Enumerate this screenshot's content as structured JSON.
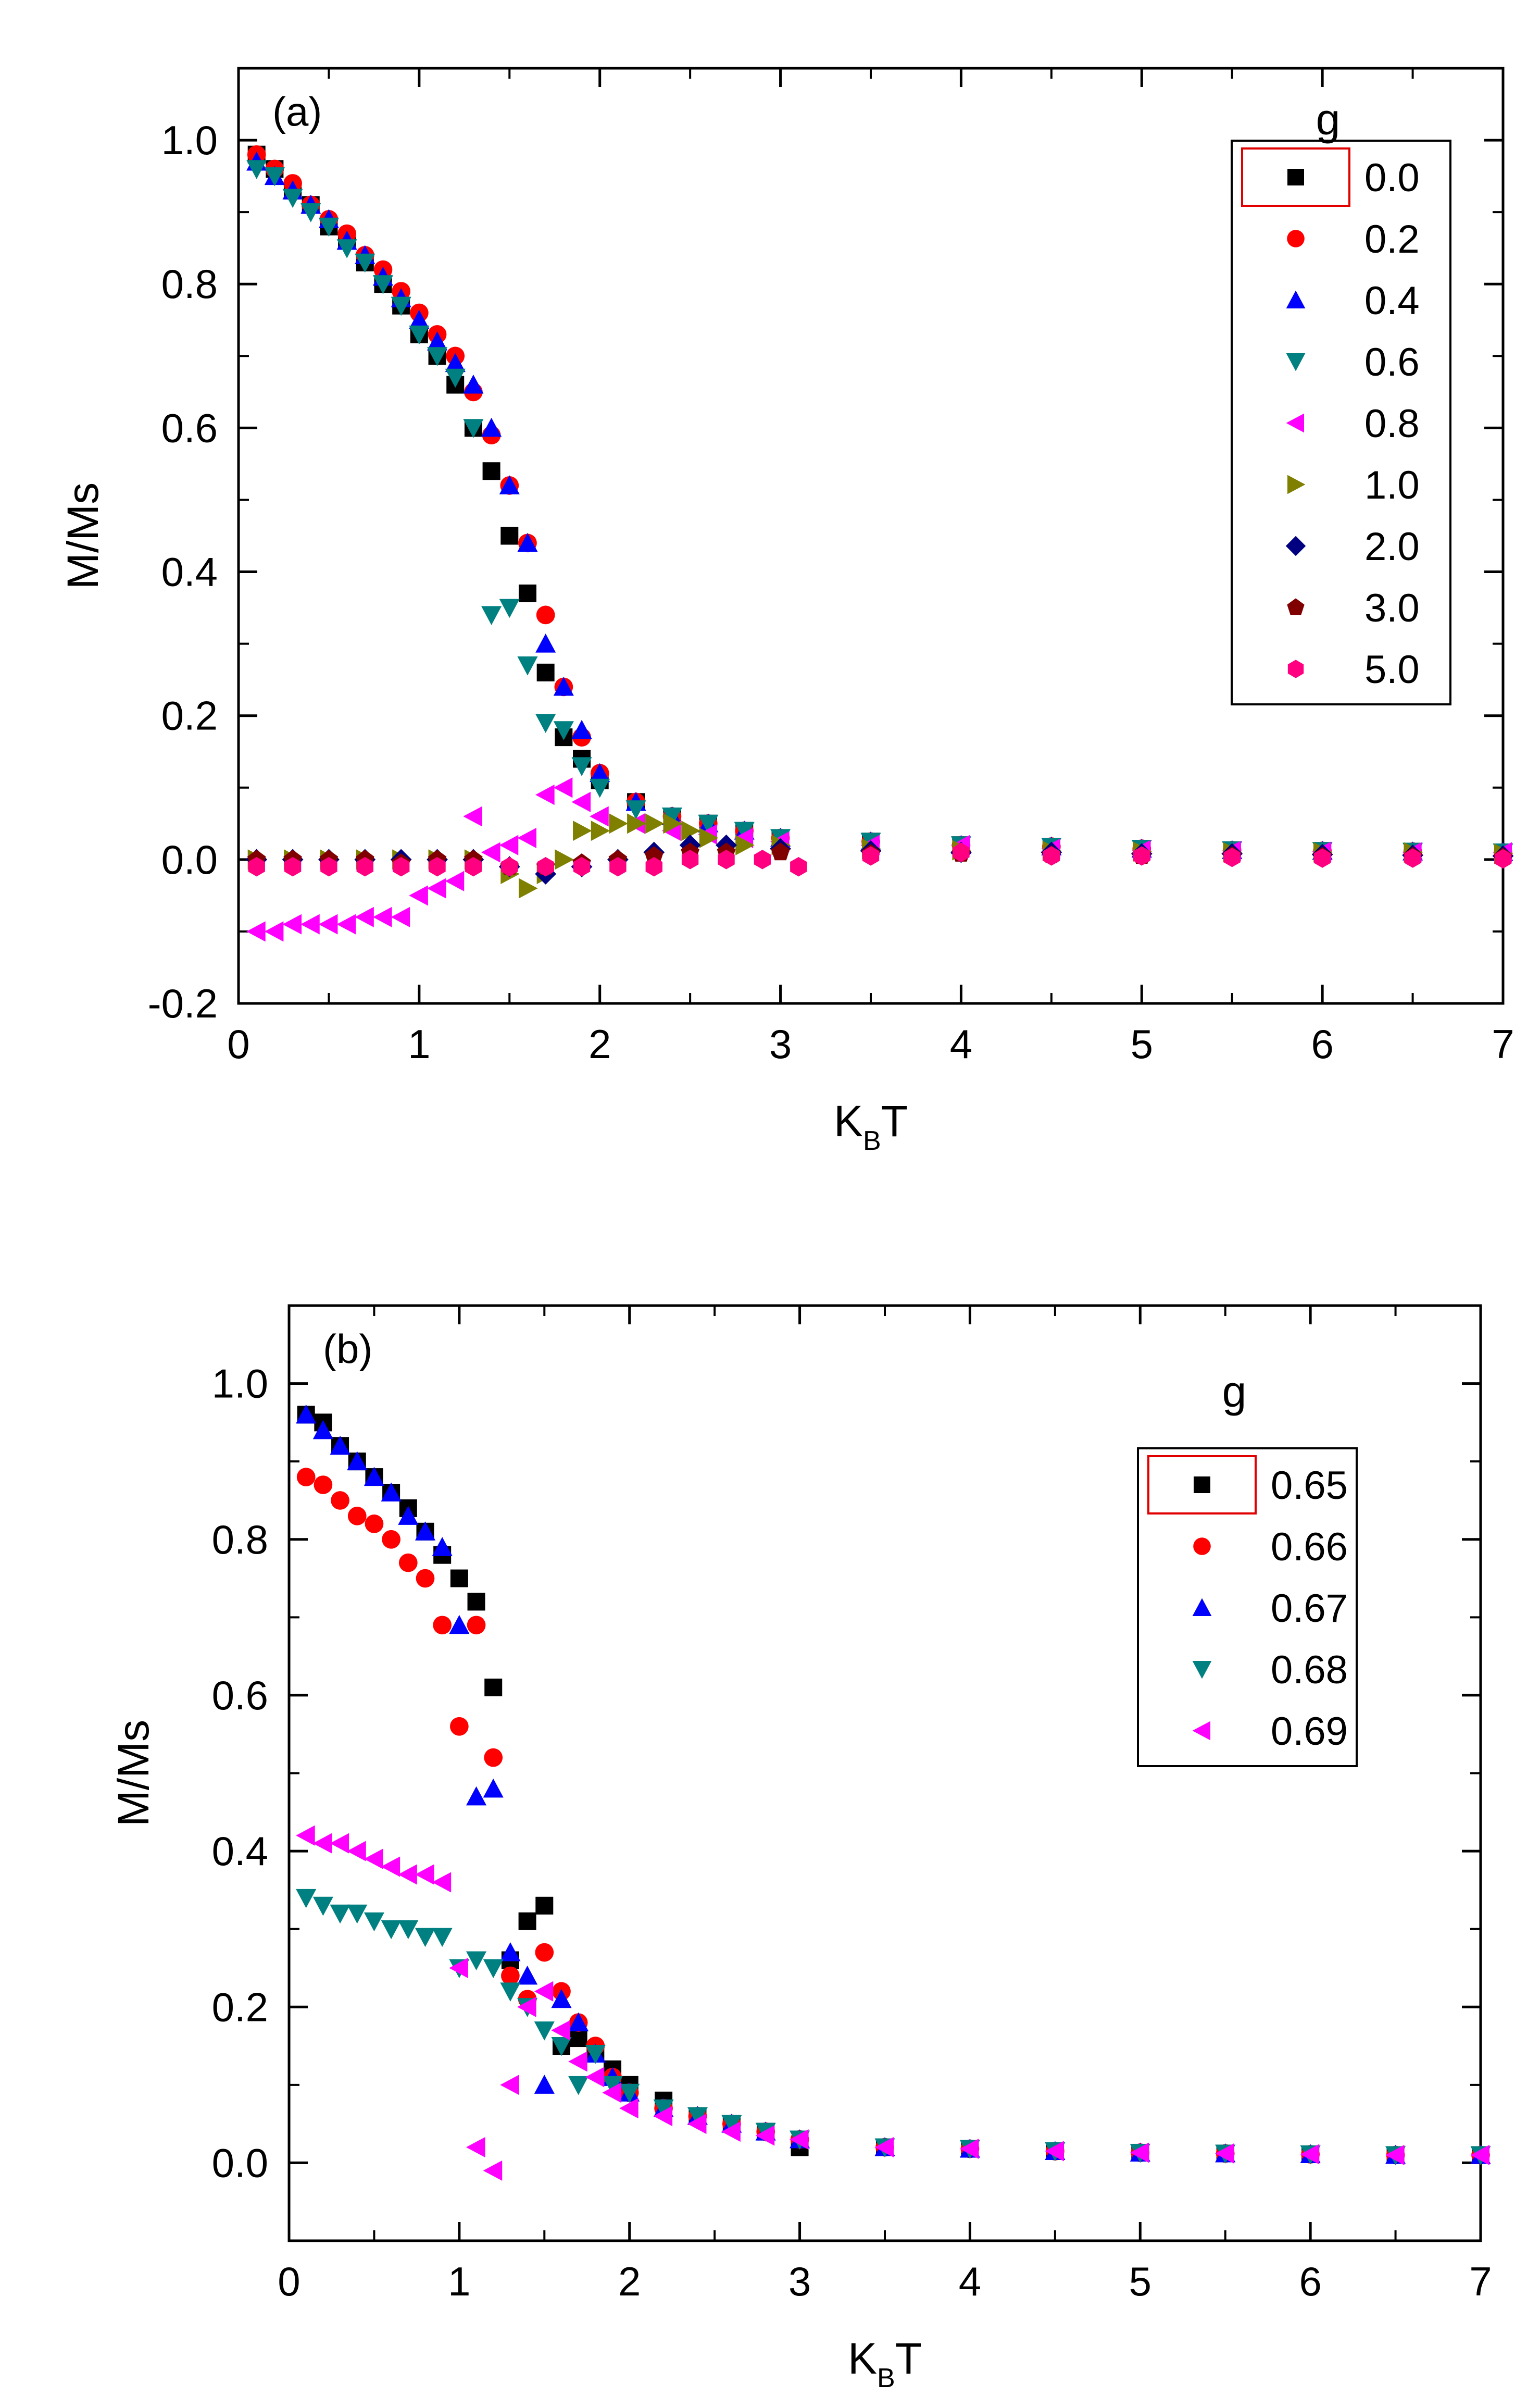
{
  "chart_data": [
    {
      "id": "a",
      "type": "scatter",
      "panel_label": "(a)",
      "xlabel": "K",
      "xlabel_sub": "B",
      "xlabel_tail": "T",
      "ylabel": "M/Ms",
      "xlim": [
        0,
        7
      ],
      "ylim": [
        -0.2,
        1.1
      ],
      "xticks": [
        0,
        1,
        2,
        3,
        4,
        5,
        6,
        7
      ],
      "yticks": [
        -0.2,
        0.0,
        0.2,
        0.4,
        0.6,
        0.8,
        1.0
      ],
      "xtick_labels": [
        "0",
        "1",
        "2",
        "3",
        "4",
        "5",
        "6",
        "7"
      ],
      "ytick_labels": [
        "-0.2",
        "0.0",
        "0.2",
        "0.4",
        "0.6",
        "0.8",
        "1.0"
      ],
      "legend_title": "g",
      "legend_position": "top-right",
      "series": [
        {
          "name": "0.0",
          "color": "#000000",
          "marker": "square",
          "x": [
            0.1,
            0.2,
            0.3,
            0.4,
            0.5,
            0.6,
            0.7,
            0.8,
            0.9,
            1.0,
            1.1,
            1.2,
            1.3,
            1.4,
            1.5,
            1.6,
            1.7,
            1.8,
            1.9,
            2.0,
            2.2,
            2.4,
            2.6,
            2.8,
            3.0,
            3.5,
            4.0,
            4.5,
            5.0,
            5.5,
            6.0,
            6.5,
            7.0
          ],
          "y": [
            0.98,
            0.96,
            0.93,
            0.91,
            0.88,
            0.86,
            0.83,
            0.8,
            0.77,
            0.73,
            0.7,
            0.66,
            0.6,
            0.54,
            0.45,
            0.37,
            0.26,
            0.17,
            0.14,
            0.11,
            0.08,
            0.06,
            0.05,
            0.04,
            0.03,
            0.025,
            0.02,
            0.018,
            0.015,
            0.013,
            0.012,
            0.011,
            0.01
          ]
        },
        {
          "name": "0.2",
          "color": "#ff0000",
          "marker": "circle",
          "x": [
            0.1,
            0.2,
            0.3,
            0.4,
            0.5,
            0.6,
            0.7,
            0.8,
            0.9,
            1.0,
            1.1,
            1.2,
            1.3,
            1.4,
            1.5,
            1.6,
            1.7,
            1.8,
            1.9,
            2.0,
            2.2,
            2.4,
            2.6,
            2.8,
            3.0,
            3.5,
            4.0,
            4.5,
            5.0,
            5.5,
            6.0,
            6.5,
            7.0
          ],
          "y": [
            0.98,
            0.96,
            0.94,
            0.91,
            0.89,
            0.87,
            0.84,
            0.82,
            0.79,
            0.76,
            0.73,
            0.7,
            0.65,
            0.59,
            0.52,
            0.44,
            0.34,
            0.24,
            0.17,
            0.12,
            0.08,
            0.06,
            0.05,
            0.04,
            0.03,
            0.025,
            0.02,
            0.018,
            0.015,
            0.013,
            0.012,
            0.011,
            0.01
          ]
        },
        {
          "name": "0.4",
          "color": "#0000ff",
          "marker": "triangle-up",
          "x": [
            0.1,
            0.2,
            0.3,
            0.4,
            0.5,
            0.6,
            0.7,
            0.8,
            0.9,
            1.0,
            1.1,
            1.2,
            1.3,
            1.4,
            1.5,
            1.6,
            1.7,
            1.8,
            1.9,
            2.0,
            2.2,
            2.4,
            2.6,
            2.8,
            3.0,
            3.5,
            4.0,
            4.5,
            5.0,
            5.5,
            6.0,
            6.5,
            7.0
          ],
          "y": [
            0.97,
            0.95,
            0.93,
            0.91,
            0.89,
            0.86,
            0.84,
            0.81,
            0.78,
            0.75,
            0.72,
            0.69,
            0.66,
            0.6,
            0.52,
            0.44,
            0.3,
            0.24,
            0.18,
            0.12,
            0.08,
            0.06,
            0.05,
            0.04,
            0.03,
            0.025,
            0.02,
            0.018,
            0.015,
            0.013,
            0.012,
            0.011,
            0.01
          ]
        },
        {
          "name": "0.6",
          "color": "#008080",
          "marker": "triangle-down",
          "x": [
            0.1,
            0.2,
            0.3,
            0.4,
            0.5,
            0.6,
            0.7,
            0.8,
            0.9,
            1.0,
            1.1,
            1.2,
            1.3,
            1.4,
            1.5,
            1.6,
            1.7,
            1.8,
            1.9,
            2.0,
            2.2,
            2.4,
            2.6,
            2.8,
            3.0,
            3.5,
            4.0,
            4.5,
            5.0,
            5.5,
            6.0,
            6.5,
            7.0
          ],
          "y": [
            0.96,
            0.95,
            0.92,
            0.9,
            0.88,
            0.85,
            0.83,
            0.8,
            0.77,
            0.73,
            0.7,
            0.67,
            0.6,
            0.34,
            0.35,
            0.27,
            0.19,
            0.18,
            0.13,
            0.1,
            0.07,
            0.06,
            0.05,
            0.04,
            0.03,
            0.025,
            0.02,
            0.018,
            0.015,
            0.013,
            0.012,
            0.011,
            0.01
          ]
        },
        {
          "name": "0.8",
          "color": "#ff00ff",
          "marker": "triangle-left",
          "x": [
            0.1,
            0.2,
            0.3,
            0.4,
            0.5,
            0.6,
            0.7,
            0.8,
            0.9,
            1.0,
            1.1,
            1.2,
            1.3,
            1.4,
            1.5,
            1.6,
            1.7,
            1.8,
            1.9,
            2.0,
            2.2,
            2.4,
            2.6,
            2.8,
            3.0,
            3.5,
            4.0,
            4.5,
            5.0,
            5.5,
            6.0,
            6.5,
            7.0
          ],
          "y": [
            -0.1,
            -0.1,
            -0.09,
            -0.09,
            -0.09,
            -0.09,
            -0.08,
            -0.08,
            -0.08,
            -0.05,
            -0.04,
            -0.03,
            0.06,
            0.01,
            0.02,
            0.03,
            0.09,
            0.1,
            0.08,
            0.06,
            0.05,
            0.04,
            0.035,
            0.03,
            0.025,
            0.02,
            0.02,
            0.015,
            0.013,
            0.012,
            0.011,
            0.01,
            0.01
          ]
        },
        {
          "name": "1.0",
          "color": "#808000",
          "marker": "triangle-right",
          "x": [
            0.1,
            0.3,
            0.5,
            0.7,
            0.9,
            1.1,
            1.3,
            1.5,
            1.6,
            1.7,
            1.8,
            1.9,
            2.0,
            2.1,
            2.2,
            2.3,
            2.4,
            2.5,
            2.6,
            2.8,
            3.0,
            3.5,
            4.0,
            4.5,
            5.0,
            5.5,
            6.0,
            6.5,
            7.0
          ],
          "y": [
            0.0,
            0.0,
            0.0,
            0.0,
            0.0,
            0.0,
            0.0,
            -0.02,
            -0.04,
            -0.02,
            0.0,
            0.04,
            0.04,
            0.05,
            0.05,
            0.05,
            0.05,
            0.04,
            0.03,
            0.02,
            0.02,
            0.015,
            0.013,
            0.012,
            0.011,
            0.01,
            0.01,
            0.01,
            0.008
          ]
        },
        {
          "name": "2.0",
          "color": "#000080",
          "marker": "diamond",
          "x": [
            0.1,
            0.3,
            0.5,
            0.7,
            0.9,
            1.1,
            1.3,
            1.5,
            1.7,
            1.9,
            2.1,
            2.3,
            2.5,
            2.7,
            3.0,
            3.5,
            4.0,
            4.5,
            5.0,
            5.5,
            6.0,
            6.5,
            7.0
          ],
          "y": [
            0.0,
            0.0,
            0.0,
            0.0,
            0.0,
            0.0,
            0.0,
            -0.01,
            -0.02,
            -0.01,
            0.0,
            0.01,
            0.02,
            0.02,
            0.015,
            0.012,
            0.01,
            0.01,
            0.008,
            0.008,
            0.007,
            0.006,
            0.005
          ]
        },
        {
          "name": "3.0",
          "color": "#800000",
          "marker": "pentagon",
          "x": [
            0.1,
            0.3,
            0.5,
            0.7,
            0.9,
            1.1,
            1.3,
            1.5,
            1.7,
            1.9,
            2.1,
            2.3,
            2.5,
            2.7,
            3.0,
            3.5,
            4.0,
            4.5,
            5.0,
            5.5,
            6.0,
            6.5,
            7.0
          ],
          "y": [
            0.0,
            0.0,
            0.0,
            0.0,
            -0.005,
            0.0,
            0.0,
            -0.01,
            -0.01,
            -0.005,
            0.0,
            0.005,
            0.01,
            0.01,
            0.01,
            0.008,
            0.008,
            0.006,
            0.005,
            0.005,
            0.004,
            0.004,
            0.003
          ]
        },
        {
          "name": "5.0",
          "color": "#ff0080",
          "marker": "hexagon",
          "x": [
            0.1,
            0.3,
            0.5,
            0.7,
            0.9,
            1.1,
            1.3,
            1.5,
            1.7,
            1.9,
            2.1,
            2.3,
            2.5,
            2.7,
            2.9,
            3.1,
            3.5,
            4.0,
            4.5,
            5.0,
            5.5,
            6.0,
            6.5,
            7.0
          ],
          "y": [
            -0.01,
            -0.01,
            -0.01,
            -0.01,
            -0.01,
            -0.01,
            -0.01,
            -0.01,
            -0.01,
            -0.01,
            -0.01,
            -0.01,
            0.0,
            0.0,
            0.0,
            -0.01,
            0.005,
            0.01,
            0.005,
            0.005,
            0.003,
            0.002,
            0.002,
            0.001
          ]
        }
      ]
    },
    {
      "id": "b",
      "type": "scatter",
      "panel_label": "(b)",
      "xlabel": "K",
      "xlabel_sub": "B",
      "xlabel_tail": "T",
      "ylabel": "M/Ms",
      "xlim": [
        0,
        7
      ],
      "ylim": [
        -0.1,
        1.1
      ],
      "xticks": [
        0,
        1,
        2,
        3,
        4,
        5,
        6,
        7
      ],
      "yticks": [
        0.0,
        0.2,
        0.4,
        0.6,
        0.8,
        1.0
      ],
      "xtick_labels": [
        "0",
        "1",
        "2",
        "3",
        "4",
        "5",
        "6",
        "7"
      ],
      "ytick_labels": [
        "0.0",
        "0.2",
        "0.4",
        "0.6",
        "0.8",
        "1.0"
      ],
      "legend_title": "g",
      "legend_position": "top-right",
      "series": [
        {
          "name": "0.65",
          "color": "#000000",
          "marker": "square",
          "x": [
            0.1,
            0.2,
            0.3,
            0.4,
            0.5,
            0.6,
            0.7,
            0.8,
            0.9,
            1.0,
            1.1,
            1.2,
            1.3,
            1.4,
            1.5,
            1.6,
            1.7,
            1.8,
            1.9,
            2.0,
            2.2,
            2.4,
            2.6,
            2.8,
            3.0,
            3.5,
            4.0,
            4.5,
            5.0,
            5.5,
            6.0,
            6.5,
            7.0
          ],
          "y": [
            0.96,
            0.95,
            0.92,
            0.9,
            0.88,
            0.86,
            0.84,
            0.81,
            0.78,
            0.75,
            0.72,
            0.61,
            0.26,
            0.31,
            0.33,
            0.15,
            0.16,
            0.14,
            0.12,
            0.1,
            0.08,
            0.06,
            0.05,
            0.04,
            0.02,
            0.02,
            0.018,
            0.015,
            0.013,
            0.012,
            0.011,
            0.01,
            0.01
          ]
        },
        {
          "name": "0.66",
          "color": "#ff0000",
          "marker": "circle",
          "x": [
            0.1,
            0.2,
            0.3,
            0.4,
            0.5,
            0.6,
            0.7,
            0.8,
            0.9,
            1.0,
            1.1,
            1.2,
            1.3,
            1.4,
            1.5,
            1.6,
            1.7,
            1.8,
            1.9,
            2.0,
            2.2,
            2.4,
            2.6,
            2.8,
            3.0,
            3.5,
            4.0,
            4.5,
            5.0,
            5.5,
            6.0,
            6.5,
            7.0
          ],
          "y": [
            0.88,
            0.87,
            0.85,
            0.83,
            0.82,
            0.8,
            0.77,
            0.75,
            0.69,
            0.56,
            0.69,
            0.52,
            0.24,
            0.21,
            0.27,
            0.22,
            0.18,
            0.15,
            0.11,
            0.09,
            0.07,
            0.06,
            0.05,
            0.04,
            0.03,
            0.02,
            0.018,
            0.015,
            0.013,
            0.012,
            0.011,
            0.01,
            0.01
          ]
        },
        {
          "name": "0.67",
          "color": "#0000ff",
          "marker": "triangle-up",
          "x": [
            0.1,
            0.2,
            0.3,
            0.4,
            0.5,
            0.6,
            0.7,
            0.8,
            0.9,
            1.0,
            1.1,
            1.2,
            1.3,
            1.4,
            1.5,
            1.6,
            1.7,
            1.8,
            1.9,
            2.0,
            2.2,
            2.4,
            2.6,
            2.8,
            3.0,
            3.5,
            4.0,
            4.5,
            5.0,
            5.5,
            6.0,
            6.5,
            7.0
          ],
          "y": [
            0.96,
            0.94,
            0.92,
            0.9,
            0.88,
            0.86,
            0.83,
            0.81,
            0.79,
            0.69,
            0.47,
            0.48,
            0.27,
            0.24,
            0.1,
            0.21,
            0.18,
            0.14,
            0.11,
            0.09,
            0.07,
            0.06,
            0.05,
            0.04,
            0.03,
            0.02,
            0.018,
            0.015,
            0.013,
            0.012,
            0.011,
            0.01,
            0.01
          ]
        },
        {
          "name": "0.68",
          "color": "#008080",
          "marker": "triangle-down",
          "x": [
            0.1,
            0.2,
            0.3,
            0.4,
            0.5,
            0.6,
            0.7,
            0.8,
            0.9,
            1.0,
            1.1,
            1.2,
            1.3,
            1.4,
            1.5,
            1.6,
            1.7,
            1.8,
            1.9,
            2.0,
            2.2,
            2.4,
            2.6,
            2.8,
            3.0,
            3.5,
            4.0,
            4.5,
            5.0,
            5.5,
            6.0,
            6.5,
            7.0
          ],
          "y": [
            0.34,
            0.33,
            0.32,
            0.32,
            0.31,
            0.3,
            0.3,
            0.29,
            0.29,
            0.25,
            0.26,
            0.25,
            0.22,
            0.2,
            0.17,
            0.15,
            0.1,
            0.14,
            0.1,
            0.09,
            0.07,
            0.06,
            0.05,
            0.04,
            0.03,
            0.02,
            0.018,
            0.015,
            0.013,
            0.012,
            0.011,
            0.01,
            0.01
          ]
        },
        {
          "name": "0.69",
          "color": "#ff00ff",
          "marker": "triangle-left",
          "x": [
            0.1,
            0.2,
            0.3,
            0.4,
            0.5,
            0.6,
            0.7,
            0.8,
            0.9,
            1.0,
            1.1,
            1.2,
            1.3,
            1.4,
            1.5,
            1.6,
            1.7,
            1.8,
            1.9,
            2.0,
            2.2,
            2.4,
            2.6,
            2.8,
            3.0,
            3.5,
            4.0,
            4.5,
            5.0,
            5.5,
            6.0,
            6.5,
            7.0
          ],
          "y": [
            0.42,
            0.41,
            0.41,
            0.4,
            0.39,
            0.38,
            0.37,
            0.37,
            0.36,
            0.25,
            0.02,
            -0.01,
            0.1,
            0.2,
            0.22,
            0.17,
            0.13,
            0.11,
            0.09,
            0.07,
            0.06,
            0.05,
            0.04,
            0.035,
            0.03,
            0.02,
            0.018,
            0.015,
            0.013,
            0.012,
            0.011,
            0.01,
            0.01
          ]
        }
      ]
    }
  ]
}
